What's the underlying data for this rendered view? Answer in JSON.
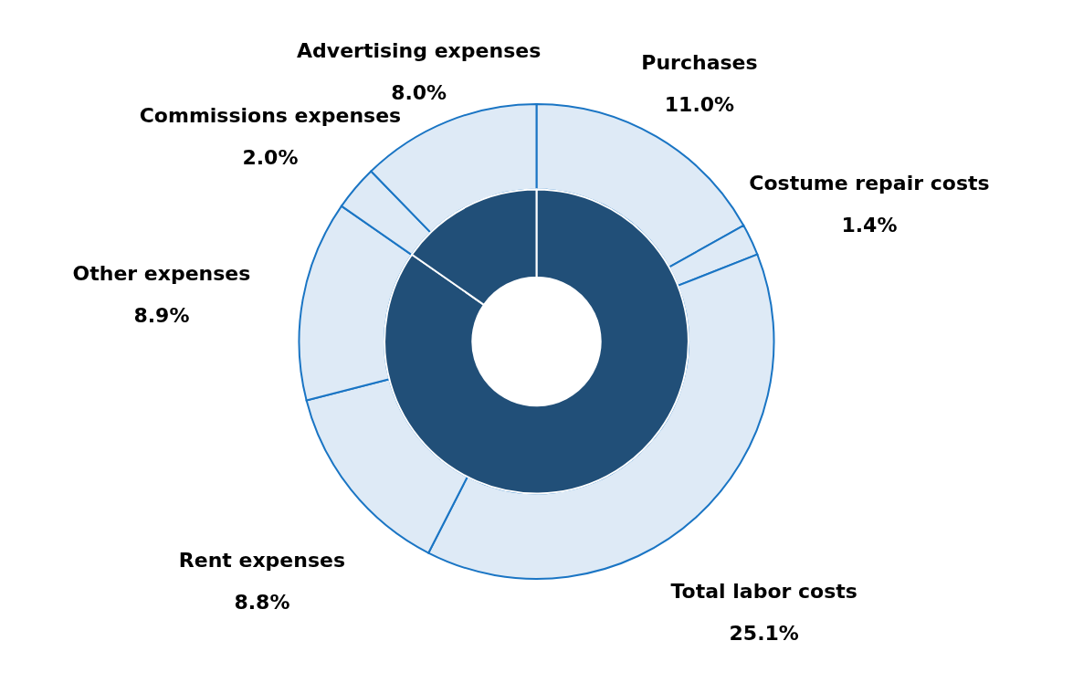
{
  "chart_data": [
    {
      "type": "donut",
      "categories": [
        "Purchases",
        "Costume repair costs",
        "Total labor costs",
        "Rent expenses",
        "Other expenses",
        "Commissions expenses",
        "Advertising expenses"
      ],
      "values": [
        11.0,
        1.4,
        25.1,
        8.8,
        8.9,
        2.0,
        8.0
      ],
      "value_labels": [
        "11.0%",
        "1.4%",
        "25.1%",
        "8.8%",
        "8.9%",
        "2.0%",
        "8.0%"
      ],
      "colors": [
        "#deeaf6",
        "#deeaf6",
        "#deeaf6",
        "#deeaf6",
        "#deeaf6",
        "#deeaf6",
        "#deeaf6"
      ],
      "legend": false
    },
    {
      "type": "donut",
      "categories": [
        null,
        null
      ],
      "values": [
        84.7,
        15.3
      ],
      "colors": [
        "#214f78",
        "#214f78"
      ],
      "legend": false
    }
  ]
}
